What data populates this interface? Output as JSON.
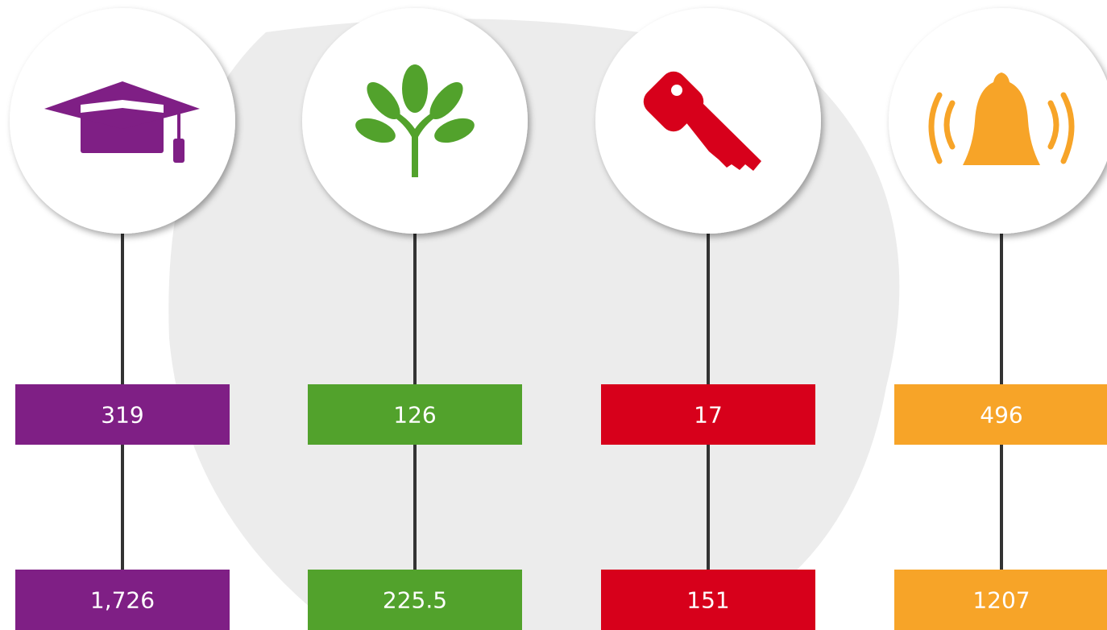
{
  "columns": [
    {
      "icon": "graduation-cap",
      "color": "#7f1f85",
      "top": "319",
      "bottom": "1,726"
    },
    {
      "icon": "tree",
      "color": "#52a22c",
      "top": "126",
      "bottom": "225.5"
    },
    {
      "icon": "key",
      "color": "#d7001b",
      "top": "17",
      "bottom": "151"
    },
    {
      "icon": "bell",
      "color": "#f7a428",
      "top": "496",
      "bottom": "1207"
    }
  ]
}
